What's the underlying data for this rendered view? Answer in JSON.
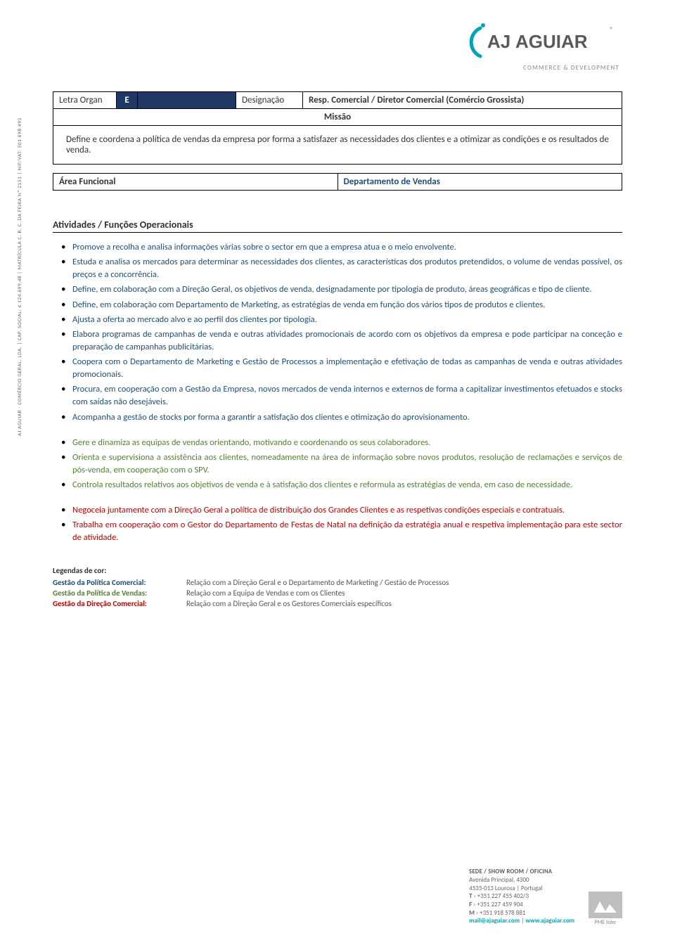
{
  "logo": {
    "brand_main": "AJ",
    "brand_second": "AGUIAR",
    "tagline": "COMMERCE & DEVELOPMENT",
    "arc_color": "#00a3b4",
    "text_color": "#5a5a5a"
  },
  "header_table": {
    "letra_label": "Letra Organ",
    "letra_value": "E",
    "design_label": "Designação",
    "design_value": "Resp. Comercial / Diretor Comercial (Comércio Grossista)",
    "missao_label": "Missão",
    "missao_body": "Define e coordena a política de vendas da empresa por forma a satisfazer as necessidades dos clientes e a otimizar as condições e os resultados de venda."
  },
  "area_table": {
    "left": "Área Funcional",
    "right": "Departamento de Vendas"
  },
  "section_title": "Atividades / Funções Operacionais",
  "sidetext": "AJ AGUIAR - COMÉRCIO GERAL, LDA. | CAP. SOCIAL: € 124.699,48 | MATRÍCULA C. R. C. DA FEIRA Nº 2151 | NIF/VAT: 501 698 493",
  "activities_blue": [
    "Promove a recolha e analisa informações várias sobre o sector em que a empresa atua e o meio envolvente.",
    "Estuda e analisa os mercados para determinar as necessidades dos clientes, as características dos produtos pretendidos, o volume de vendas possível, os preços e a concorrência.",
    "Define, em colaboração com a Direção Geral, os objetivos de venda, designadamente por tipologia de produto, áreas geográficas e tipo de cliente.",
    "Define, em colaboração com Departamento de Marketing, as estratégias de venda em função dos vários tipos de produtos e clientes.",
    "Ajusta a oferta ao mercado alvo e ao perfil dos clientes por tipologia.",
    "Elabora programas de campanhas de venda e outras atividades promocionais de acordo com os objetivos da empresa e pode participar na conceção e preparação de campanhas publicitárias.",
    "Coopera com o Departamento de Marketing e Gestão de Processos a implementação e efetivação de todas as campanhas de venda e outras atividades promocionais.",
    "Procura, em cooperação com a Gestão da Empresa, novos mercados de venda internos e externos de forma a capitalizar investimentos efetuados e stocks com saídas não desejáveis.",
    "Acompanha a gestão de stocks por forma a garantir a satisfação dos clientes e otimização do aprovisionamento."
  ],
  "activities_green": [
    "Gere e dinamiza as equipas de vendas orientando, motivando e coordenando os seus colaboradores.",
    "Orienta e supervisiona a assistência aos clientes, nomeadamente na área de informação sobre novos produtos, resolução de reclamações e serviços de pós-venda, em cooperação com o SPV.",
    "Controla resultados relativos aos objetivos de venda e à satisfação dos clientes e reformula as estratégias de venda, em caso de necessidade."
  ],
  "activities_red": [
    "Negoceia juntamente com a Direção Geral a política de distribuição dos Grandes Clientes e as respetivas condições especiais e contratuais.",
    "Trabalha em cooperação com o Gestor do Departamento de Festas de Natal na definição da estratégia anual e respetiva implementação para este sector de atividade."
  ],
  "legend": {
    "title": "Legendas de cor:",
    "rows": [
      {
        "label": "Gestão da Política Comercial:",
        "color": "blue",
        "desc": "Relação com a Direção Geral e o Departamento de Marketing / Gestão de Processos"
      },
      {
        "label": "Gestão da Política de Vendas:",
        "color": "green",
        "desc": "Relação com a Equipa de Vendas e com os Clientes"
      },
      {
        "label": "Gestão da Direção Comercial:",
        "color": "red",
        "desc": "Relação com a Direção Geral e os Gestores Comerciais específicos"
      }
    ]
  },
  "footer": {
    "heading": "SEDE / SHOW ROOM / OFICINA",
    "addr1": "Avenida Principal, 4300",
    "addr2": "4535-013 Lourosa | Portugal",
    "tel_label": "T",
    "tel": "+351 227 455 402/3",
    "fax_label": "F",
    "fax": "+351 227 459 904",
    "mob_label": "M",
    "mob": "+351 918 578 881",
    "email": "mail@ajaguiar.com",
    "site": "www.ajaguiar.com",
    "pme_label": "PME líder"
  },
  "colors": {
    "dark_blue_bg": "#1f3864",
    "text_blue": "#1f4e79",
    "text_green": "#538135",
    "text_red": "#c00000",
    "teal": "#00a3b4"
  }
}
